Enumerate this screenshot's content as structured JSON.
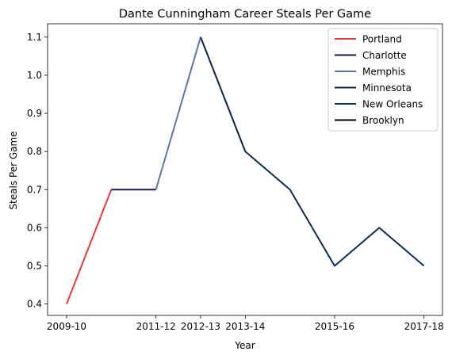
{
  "chart_data": {
    "type": "line",
    "title": "Dante Cunningham Career Steals Per Game",
    "xlabel": "Year",
    "ylabel": "Steals Per Game",
    "x_tick_labels": [
      "2009-10",
      "2011-12",
      "2012-13",
      "2013-14",
      "2015-16",
      "2017-18"
    ],
    "y_ticks": [
      0.4,
      0.5,
      0.6,
      0.7,
      0.8,
      0.9,
      1.0,
      1.1
    ],
    "y_tick_labels": [
      "0.4",
      "0.5",
      "0.6",
      "0.7",
      "0.8",
      "0.9",
      "1.0",
      "1.1"
    ],
    "ylim": [
      0.37,
      1.135
    ],
    "legend_position": "top-right",
    "seasons": [
      "2009-10",
      "2010-11",
      "2011-12",
      "2012-13",
      "2013-14",
      "2014-15",
      "2015-16",
      "2016-17",
      "2017-18"
    ],
    "series": [
      {
        "name": "Portland",
        "color": "#E03A3E",
        "x": [
          "2009-10",
          "2010-11"
        ],
        "values": [
          0.4,
          0.7
        ]
      },
      {
        "name": "Charlotte",
        "color": "#1D1160",
        "x": [
          "2010-11",
          "2011-12"
        ],
        "values": [
          0.7,
          0.7
        ]
      },
      {
        "name": "Memphis",
        "color": "#5D76A9",
        "x": [
          "2011-12",
          "2012-13"
        ],
        "values": [
          0.7,
          1.1
        ]
      },
      {
        "name": "Minnesota",
        "color": "#0C2340",
        "x": [
          "2012-13",
          "2013-14"
        ],
        "values": [
          1.1,
          0.8
        ]
      },
      {
        "name": "New Orleans",
        "color": "#0C2C56",
        "x": [
          "2013-14",
          "2014-15",
          "2015-16",
          "2016-17",
          "2017-18"
        ],
        "values": [
          0.8,
          0.7,
          0.5,
          0.6,
          0.5
        ]
      },
      {
        "name": "Brooklyn",
        "color": "#000000",
        "x": [],
        "values": []
      }
    ],
    "grid": false
  }
}
